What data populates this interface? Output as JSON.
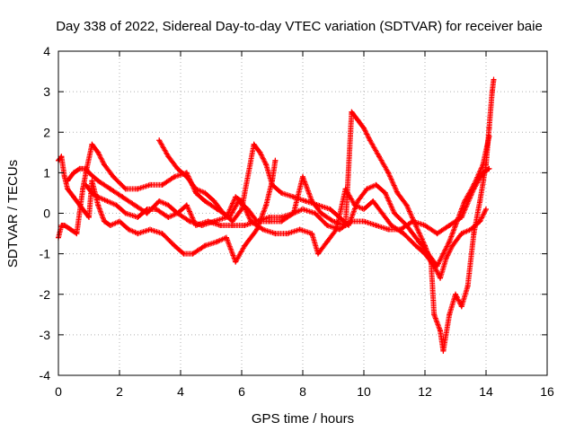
{
  "chart_data": {
    "type": "scatter",
    "title": "Day 338 of 2022, Sidereal Day-to-day VTEC variation (SDTVAR) for receiver baie",
    "xlabel": "GPS time / hours",
    "ylabel": "SDTVAR / TECUs",
    "xlim": [
      0,
      16
    ],
    "ylim": [
      -4,
      4
    ],
    "xticks": [
      "0",
      "2",
      "4",
      "6",
      "8",
      "10",
      "12",
      "14",
      "16"
    ],
    "yticks": [
      "-4",
      "-3",
      "-2",
      "-1",
      "0",
      "1",
      "2",
      "3",
      "4"
    ],
    "grid": true,
    "marker": "plus",
    "color": "#ff0000",
    "series": [
      {
        "points": [
          [
            0.0,
            1.3
          ],
          [
            0.1,
            1.4
          ],
          [
            0.2,
            0.9
          ],
          [
            0.3,
            0.6
          ],
          [
            0.5,
            0.4
          ],
          [
            0.7,
            0.2
          ],
          [
            0.9,
            0.0
          ],
          [
            1.0,
            -0.1
          ],
          [
            1.1,
            0.8
          ],
          [
            1.3,
            0.2
          ],
          [
            1.5,
            -0.2
          ],
          [
            1.7,
            -0.3
          ],
          [
            2.0,
            -0.2
          ],
          [
            2.3,
            -0.4
          ],
          [
            2.6,
            -0.5
          ],
          [
            3.0,
            -0.4
          ],
          [
            3.4,
            -0.5
          ],
          [
            3.8,
            -0.8
          ],
          [
            4.1,
            -1.0
          ],
          [
            4.4,
            -1.0
          ],
          [
            4.8,
            -0.8
          ],
          [
            5.2,
            -0.7
          ],
          [
            5.5,
            -0.6
          ],
          [
            5.8,
            -1.2
          ],
          [
            6.1,
            -0.8
          ],
          [
            6.5,
            -0.4
          ],
          [
            6.8,
            0.2
          ],
          [
            7.0,
            0.8
          ],
          [
            7.1,
            1.3
          ]
        ]
      },
      {
        "points": [
          [
            0.0,
            -0.6
          ],
          [
            0.1,
            -0.3
          ],
          [
            0.2,
            -0.3
          ],
          [
            0.4,
            -0.4
          ],
          [
            0.6,
            -0.5
          ],
          [
            0.8,
            0.6
          ],
          [
            0.9,
            1.0
          ],
          [
            1.1,
            1.7
          ],
          [
            1.3,
            1.5
          ],
          [
            1.5,
            1.2
          ],
          [
            1.8,
            0.9
          ],
          [
            2.2,
            0.6
          ],
          [
            2.6,
            0.6
          ],
          [
            3.0,
            0.7
          ],
          [
            3.4,
            0.7
          ],
          [
            3.8,
            0.9
          ],
          [
            4.2,
            1.0
          ],
          [
            4.5,
            0.5
          ],
          [
            4.8,
            0.3
          ],
          [
            5.2,
            0.1
          ],
          [
            5.6,
            -0.1
          ],
          [
            5.9,
            0.3
          ],
          [
            6.2,
            0.1
          ],
          [
            6.5,
            -0.2
          ],
          [
            6.9,
            -0.1
          ],
          [
            7.3,
            -0.1
          ],
          [
            7.7,
            0.0
          ],
          [
            8.0,
            0.1
          ],
          [
            8.4,
            0.0
          ],
          [
            8.8,
            -0.3
          ],
          [
            9.2,
            -0.4
          ],
          [
            9.6,
            -0.2
          ],
          [
            10.0,
            -0.2
          ],
          [
            10.4,
            -0.3
          ],
          [
            10.8,
            -0.4
          ],
          [
            11.2,
            -0.4
          ],
          [
            11.6,
            -0.2
          ],
          [
            12.0,
            -0.3
          ],
          [
            12.4,
            -0.5
          ],
          [
            12.8,
            -0.3
          ],
          [
            13.2,
            -0.1
          ],
          [
            13.6,
            0.6
          ],
          [
            13.9,
            1.0
          ],
          [
            14.1,
            1.1
          ]
        ]
      },
      {
        "points": [
          [
            0.3,
            0.8
          ],
          [
            0.5,
            1.0
          ],
          [
            0.7,
            1.1
          ],
          [
            0.9,
            1.1
          ],
          [
            1.0,
            1.0
          ],
          [
            1.3,
            0.8
          ],
          [
            1.7,
            0.6
          ],
          [
            2.1,
            0.4
          ],
          [
            2.5,
            0.2
          ],
          [
            2.9,
            0.0
          ],
          [
            3.3,
            0.3
          ],
          [
            3.6,
            0.2
          ],
          [
            3.9,
            0.0
          ],
          [
            4.3,
            -0.2
          ],
          [
            4.7,
            -0.3
          ],
          [
            5.1,
            -0.2
          ],
          [
            5.5,
            -0.1
          ],
          [
            5.8,
            0.4
          ],
          [
            6.0,
            0.3
          ],
          [
            6.3,
            -0.2
          ],
          [
            6.7,
            -0.4
          ],
          [
            7.1,
            -0.5
          ],
          [
            7.5,
            -0.5
          ],
          [
            7.9,
            -0.4
          ],
          [
            8.3,
            -0.5
          ],
          [
            8.5,
            -1.0
          ],
          [
            8.8,
            -0.7
          ],
          [
            9.1,
            -0.4
          ],
          [
            9.4,
            0.6
          ],
          [
            9.7,
            0.2
          ],
          [
            10.0,
            0.1
          ],
          [
            10.3,
            0.3
          ],
          [
            10.6,
            0.0
          ],
          [
            10.9,
            -0.3
          ],
          [
            11.3,
            -0.5
          ],
          [
            11.7,
            -0.8
          ],
          [
            12.0,
            -1.0
          ],
          [
            12.3,
            -1.3
          ],
          [
            12.5,
            -1.6
          ],
          [
            12.7,
            -1.1
          ],
          [
            12.9,
            -0.8
          ],
          [
            13.2,
            -0.5
          ],
          [
            13.5,
            -0.4
          ],
          [
            13.8,
            -0.2
          ],
          [
            14.0,
            0.1
          ]
        ]
      },
      {
        "points": [
          [
            3.3,
            1.8
          ],
          [
            3.6,
            1.4
          ],
          [
            3.9,
            1.1
          ],
          [
            4.2,
            0.9
          ],
          [
            4.5,
            0.6
          ],
          [
            4.8,
            0.5
          ],
          [
            5.1,
            0.3
          ],
          [
            5.4,
            0.0
          ],
          [
            5.7,
            -0.2
          ],
          [
            6.0,
            0.1
          ],
          [
            6.4,
            1.7
          ],
          [
            6.6,
            1.5
          ],
          [
            6.8,
            1.2
          ],
          [
            7.0,
            0.7
          ],
          [
            7.3,
            0.5
          ],
          [
            7.7,
            0.4
          ],
          [
            8.1,
            0.3
          ],
          [
            8.5,
            0.2
          ],
          [
            8.9,
            0.1
          ],
          [
            9.2,
            -0.1
          ],
          [
            9.5,
            -0.3
          ],
          [
            9.8,
            0.3
          ],
          [
            10.1,
            0.6
          ],
          [
            10.4,
            0.7
          ],
          [
            10.7,
            0.5
          ],
          [
            11.0,
            0.0
          ],
          [
            11.4,
            -0.3
          ],
          [
            11.8,
            -0.7
          ],
          [
            12.1,
            -1.0
          ],
          [
            12.4,
            -1.3
          ],
          [
            12.6,
            -1.0
          ],
          [
            12.8,
            -0.7
          ],
          [
            13.0,
            -0.3
          ],
          [
            13.3,
            0.3
          ],
          [
            13.6,
            0.7
          ],
          [
            13.9,
            1.2
          ],
          [
            14.1,
            1.9
          ]
        ]
      },
      {
        "points": [
          [
            0.9,
            0.7
          ],
          [
            1.1,
            0.5
          ],
          [
            1.3,
            0.4
          ],
          [
            1.6,
            0.3
          ],
          [
            1.9,
            0.2
          ],
          [
            2.2,
            0.0
          ],
          [
            2.6,
            -0.1
          ],
          [
            2.9,
            0.1
          ],
          [
            3.2,
            0.1
          ],
          [
            3.6,
            -0.1
          ],
          [
            3.9,
            0.0
          ],
          [
            4.2,
            0.2
          ],
          [
            4.5,
            -0.3
          ],
          [
            4.9,
            -0.2
          ],
          [
            5.3,
            -0.3
          ],
          [
            5.7,
            -0.3
          ],
          [
            6.1,
            -0.3
          ],
          [
            6.5,
            -0.2
          ],
          [
            6.9,
            -0.2
          ],
          [
            7.3,
            -0.2
          ],
          [
            7.7,
            0.0
          ],
          [
            8.0,
            0.9
          ],
          [
            8.3,
            0.3
          ],
          [
            8.6,
            0.0
          ],
          [
            9.0,
            -0.2
          ],
          [
            9.4,
            -0.3
          ],
          [
            9.6,
            2.5
          ],
          [
            9.8,
            2.3
          ],
          [
            10.0,
            2.1
          ],
          [
            10.2,
            1.8
          ],
          [
            10.5,
            1.4
          ],
          [
            10.8,
            1.0
          ],
          [
            11.1,
            0.5
          ],
          [
            11.4,
            0.2
          ],
          [
            11.7,
            -0.3
          ],
          [
            12.0,
            -0.8
          ],
          [
            12.2,
            -1.2
          ],
          [
            12.3,
            -2.5
          ],
          [
            12.5,
            -2.9
          ],
          [
            12.6,
            -3.4
          ],
          [
            12.8,
            -2.5
          ],
          [
            13.0,
            -2.0
          ],
          [
            13.2,
            -2.3
          ],
          [
            13.4,
            -1.8
          ],
          [
            13.6,
            -0.5
          ],
          [
            13.8,
            0.3
          ],
          [
            14.0,
            1.2
          ],
          [
            14.1,
            2.1
          ],
          [
            14.2,
            3.0
          ],
          [
            14.25,
            3.3
          ]
        ]
      }
    ]
  }
}
